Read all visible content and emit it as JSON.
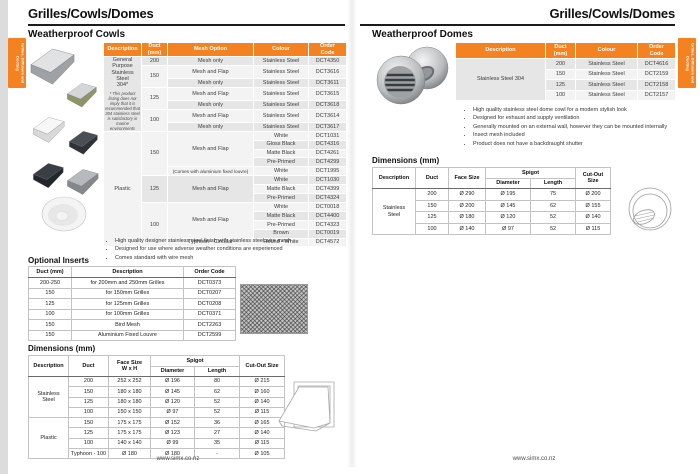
{
  "colors": {
    "accent_orange": "#f58220",
    "rule_black": "#1b1b1b"
  },
  "left_page": {
    "title": "Grilles/Cowls/Domes",
    "section_heading": "Weatherproof Cowls",
    "side_tab": "Grilles, Diffusers and Ducting",
    "cowls_table": {
      "header": [
        [
          {
            "t": "Description"
          },
          {
            "t": "Duct\n(mm)"
          },
          {
            "t": "Mesh Option"
          },
          {
            "t": "Colour"
          },
          {
            "t": "Order\nCode"
          }
        ]
      ],
      "rows": [
        [
          {
            "t": "General Purpose\nStainless Steel\n304*",
            "rs": 7,
            "note": "* This product listing does not imply that it is recommended that 304 stainless steel is satisfactory in marine environments"
          },
          {
            "t": "200"
          },
          {
            "t": "Mesh only"
          },
          {
            "t": "Stainless Steel"
          },
          {
            "t": "DCT4350"
          }
        ],
        [
          {
            "t": "150",
            "rs": 2
          },
          {
            "t": "Mesh and Flap"
          },
          {
            "t": "Stainless Steel"
          },
          {
            "t": "DCT3616"
          }
        ],
        [
          {
            "t": "Mesh only"
          },
          {
            "t": "Stainless Steel"
          },
          {
            "t": "DCT3611"
          }
        ],
        [
          {
            "t": "125",
            "rs": 2
          },
          {
            "t": "Mesh and Flap"
          },
          {
            "t": "Stainless Steel"
          },
          {
            "t": "DCT3615"
          }
        ],
        [
          {
            "t": "Mesh only"
          },
          {
            "t": "Stainless Steel"
          },
          {
            "t": "DCT3618"
          }
        ],
        [
          {
            "t": "100",
            "rs": 2
          },
          {
            "t": "Mesh and Flap"
          },
          {
            "t": "Stainless Steel"
          },
          {
            "t": "DCT3614"
          }
        ],
        [
          {
            "t": "Mesh only"
          },
          {
            "t": "Stainless Steel"
          },
          {
            "t": "DCT3617"
          }
        ],
        [
          {
            "t": "Plastic",
            "rs": 13
          },
          {
            "t": "150",
            "rs": 5
          },
          {
            "t": "Mesh and Flap",
            "rs": 4
          },
          {
            "t": "White"
          },
          {
            "t": "DCT1031"
          }
        ],
        [
          {
            "t": "Gloss Black"
          },
          {
            "t": "DCT4316"
          }
        ],
        [
          {
            "t": "Matte Black"
          },
          {
            "t": "DCT4261"
          }
        ],
        [
          {
            "t": "Pre-Primed"
          },
          {
            "t": "DCT4299"
          }
        ],
        [
          {
            "t": "(Comes with aluminium fixed louvre)",
            "cls": "fit"
          },
          {
            "t": "White"
          },
          {
            "t": "DCT1995"
          }
        ],
        [
          {
            "t": "125",
            "rs": 3
          },
          {
            "t": "Mesh and Flap",
            "rs": 3
          },
          {
            "t": "White"
          },
          {
            "t": "DCT1030"
          }
        ],
        [
          {
            "t": "Matte Black"
          },
          {
            "t": "DCT4399"
          }
        ],
        [
          {
            "t": "Pre-Primed"
          },
          {
            "t": "DCT4324"
          }
        ],
        [
          {
            "t": "100",
            "rs": 5
          },
          {
            "t": "Mesh and Flap",
            "rs": 4
          },
          {
            "t": "White"
          },
          {
            "t": "DCT0018"
          }
        ],
        [
          {
            "t": "Matte Black"
          },
          {
            "t": "DCT4400"
          }
        ],
        [
          {
            "t": "Pre-Primed"
          },
          {
            "t": "DCT4323"
          }
        ],
        [
          {
            "t": "Brown"
          },
          {
            "t": "DCT0019"
          }
        ],
        [
          {
            "t": "Typhoon - Circular"
          },
          {
            "t": "Round - White"
          },
          {
            "t": "DCT4572"
          }
        ]
      ]
    },
    "bullets": [
      "High quality designer stainless steel finish with stainless steel wire mesh",
      "Designed for use where adverse weather conditions are experienced",
      "Comes standard with wire mesh"
    ],
    "optional_inserts_heading": "Optional Inserts",
    "optional_inserts_table": {
      "header": [
        [
          {
            "t": "Duct (mm)"
          },
          {
            "t": "Description"
          },
          {
            "t": "Order Code"
          }
        ]
      ],
      "rows": [
        [
          {
            "t": "200-250"
          },
          {
            "t": "for 200mm and 250mm Grilles"
          },
          {
            "t": "DCT0373"
          }
        ],
        [
          {
            "t": "150"
          },
          {
            "t": "for 150mm Grilles"
          },
          {
            "t": "DCT0207"
          }
        ],
        [
          {
            "t": "125"
          },
          {
            "t": "for 125mm Grilles"
          },
          {
            "t": "DCT0208"
          }
        ],
        [
          {
            "t": "100"
          },
          {
            "t": "for 100mm Grilles"
          },
          {
            "t": "DCT0371"
          }
        ],
        [
          {
            "t": "150"
          },
          {
            "t": "Bird Mesh"
          },
          {
            "t": "DCT2263"
          }
        ],
        [
          {
            "t": "150"
          },
          {
            "t": "Aluminium Fixed Louvre"
          },
          {
            "t": "DCT2599"
          }
        ]
      ]
    },
    "dimensions_heading": "Dimensions (mm)",
    "dimensions_table": {
      "header": [
        [
          {
            "t": "Description",
            "rs": 2
          },
          {
            "t": "Duct",
            "rs": 2
          },
          {
            "t": "Face Size\nW x H",
            "rs": 2
          },
          {
            "t": "Spigot",
            "cs": 2
          },
          {
            "t": "Cut-Out Size",
            "rs": 2
          }
        ],
        [
          {
            "t": "Diameter"
          },
          {
            "t": "Length"
          }
        ]
      ],
      "rows": [
        [
          {
            "t": "Stainless\nSteel",
            "rs": 4
          },
          {
            "t": "200"
          },
          {
            "t": "252 x 252"
          },
          {
            "t": "Ø 196"
          },
          {
            "t": "80"
          },
          {
            "t": "Ø 215"
          }
        ],
        [
          {
            "t": "150"
          },
          {
            "t": "180 x 180"
          },
          {
            "t": "Ø 145"
          },
          {
            "t": "62"
          },
          {
            "t": "Ø 160"
          }
        ],
        [
          {
            "t": "125"
          },
          {
            "t": "180 x 180"
          },
          {
            "t": "Ø 120"
          },
          {
            "t": "52"
          },
          {
            "t": "Ø 140"
          }
        ],
        [
          {
            "t": "100"
          },
          {
            "t": "150 x 150"
          },
          {
            "t": "Ø 97"
          },
          {
            "t": "52"
          },
          {
            "t": "Ø 115"
          }
        ],
        [
          {
            "t": "Plastic",
            "rs": 4
          },
          {
            "t": "150"
          },
          {
            "t": "175 x 175"
          },
          {
            "t": "Ø 152"
          },
          {
            "t": "36"
          },
          {
            "t": "Ø 165"
          }
        ],
        [
          {
            "t": "125"
          },
          {
            "t": "175 x 175"
          },
          {
            "t": "Ø 123"
          },
          {
            "t": "27"
          },
          {
            "t": "Ø 140"
          }
        ],
        [
          {
            "t": "100"
          },
          {
            "t": "140 x 140"
          },
          {
            "t": "Ø 99"
          },
          {
            "t": "35"
          },
          {
            "t": "Ø 115"
          }
        ],
        [
          {
            "t": "Typhoon - 100"
          },
          {
            "t": "Ø 180"
          },
          {
            "t": "Ø 180"
          },
          {
            "t": "-"
          },
          {
            "t": "Ø 105"
          }
        ]
      ]
    },
    "footer": "www.simx.co.nz"
  },
  "right_page": {
    "title": "Grilles/Cowls/Domes",
    "section_heading": "Weatherproof Domes",
    "side_tab": "Grilles, Diffusers and Ducting",
    "domes_table": {
      "header": [
        [
          {
            "t": "Description"
          },
          {
            "t": "Duct\n(mm)"
          },
          {
            "t": "Colour"
          },
          {
            "t": "Order\nCode"
          }
        ]
      ],
      "rows": [
        [
          {
            "t": "Stainless Steel 304",
            "rs": 4
          },
          {
            "t": "200"
          },
          {
            "t": "Stainless Steel"
          },
          {
            "t": "DCT4616"
          }
        ],
        [
          {
            "t": "150"
          },
          {
            "t": "Stainless Steel"
          },
          {
            "t": "DCT2159"
          }
        ],
        [
          {
            "t": "125"
          },
          {
            "t": "Stainless Steel"
          },
          {
            "t": "DCT2158"
          }
        ],
        [
          {
            "t": "100"
          },
          {
            "t": "Stainless Steel"
          },
          {
            "t": "DCT2157"
          }
        ]
      ]
    },
    "bullets": [
      "High quality stainless steel dome cowl for a modern stylish look",
      "Designed for exhaust and supply ventilation",
      "Generally mounted on an external wall, however they can be mounted internally",
      "Insect mesh included",
      "Product does not have a backdraught shutter"
    ],
    "dimensions_heading": "Dimensions (mm)",
    "dimensions_table": {
      "header": [
        [
          {
            "t": "Description",
            "rs": 2
          },
          {
            "t": "Duct",
            "rs": 2
          },
          {
            "t": "Face Size",
            "rs": 2
          },
          {
            "t": "Spigot",
            "cs": 2
          },
          {
            "t": "Cut-Out Size",
            "rs": 2
          }
        ],
        [
          {
            "t": "Diameter"
          },
          {
            "t": "Length"
          }
        ]
      ],
      "rows": [
        [
          {
            "t": "Stainless\nSteel",
            "rs": 4
          },
          {
            "t": "200"
          },
          {
            "t": "Ø 290"
          },
          {
            "t": "Ø 195"
          },
          {
            "t": "75"
          },
          {
            "t": "Ø 200"
          }
        ],
        [
          {
            "t": "150"
          },
          {
            "t": "Ø 200"
          },
          {
            "t": "Ø 145"
          },
          {
            "t": "62"
          },
          {
            "t": "Ø 155"
          }
        ],
        [
          {
            "t": "125"
          },
          {
            "t": "Ø 180"
          },
          {
            "t": "Ø 120"
          },
          {
            "t": "52"
          },
          {
            "t": "Ø 140"
          }
        ],
        [
          {
            "t": "100"
          },
          {
            "t": "Ø 140"
          },
          {
            "t": "Ø 97"
          },
          {
            "t": "52"
          },
          {
            "t": "Ø 115"
          }
        ]
      ]
    },
    "footer": "www.simx.co.nz"
  }
}
